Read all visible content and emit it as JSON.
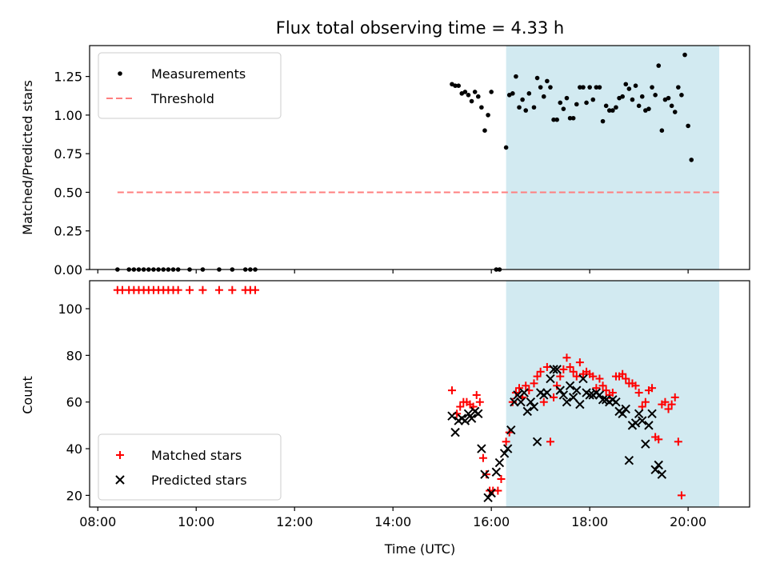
{
  "chart_data": [
    {
      "type": "scatter",
      "title": "Flux total observing time = 4.33 h",
      "xlabel": "",
      "ylabel": "Matched/Predicted stars",
      "xlim": [
        "07:50",
        "21:15"
      ],
      "ylim": [
        0,
        1.45
      ],
      "x_ticks": [
        "08:00",
        "10:00",
        "12:00",
        "14:00",
        "16:00",
        "18:00",
        "20:00"
      ],
      "y_ticks": [
        "0.00",
        "0.25",
        "0.50",
        "0.75",
        "1.00",
        "1.25"
      ],
      "legend": {
        "placement": "upper-left",
        "entries": [
          "Measurements",
          "Threshold"
        ]
      },
      "shaded_span": {
        "from": "16:18",
        "to": "20:38",
        "color": "#add8e6"
      },
      "threshold": {
        "name": "Threshold",
        "value": 0.5,
        "from": "08:24",
        "to": "20:38",
        "color": "#ff7f7f"
      },
      "series": [
        {
          "name": "Measurements",
          "color": "#000000",
          "points": [
            [
              "08:24",
              0
            ],
            [
              "08:38",
              0
            ],
            [
              "08:44",
              0
            ],
            [
              "08:50",
              0
            ],
            [
              "08:56",
              0
            ],
            [
              "09:02",
              0
            ],
            [
              "09:08",
              0
            ],
            [
              "09:14",
              0
            ],
            [
              "09:20",
              0
            ],
            [
              "09:26",
              0
            ],
            [
              "09:32",
              0
            ],
            [
              "09:38",
              0
            ],
            [
              "09:52",
              0
            ],
            [
              "10:08",
              0
            ],
            [
              "10:28",
              0
            ],
            [
              "10:44",
              0
            ],
            [
              "11:00",
              0
            ],
            [
              "11:06",
              0
            ],
            [
              "11:12",
              0
            ],
            [
              "15:12",
              1.2
            ],
            [
              "15:16",
              1.19
            ],
            [
              "15:20",
              1.19
            ],
            [
              "15:24",
              1.14
            ],
            [
              "15:28",
              1.15
            ],
            [
              "15:32",
              1.13
            ],
            [
              "15:36",
              1.09
            ],
            [
              "15:40",
              1.15
            ],
            [
              "15:44",
              1.12
            ],
            [
              "15:48",
              1.05
            ],
            [
              "15:52",
              0.9
            ],
            [
              "15:56",
              1.0
            ],
            [
              "16:00",
              1.15
            ],
            [
              "16:06",
              0
            ],
            [
              "16:10",
              0
            ],
            [
              "16:18",
              0.79
            ],
            [
              "16:22",
              1.13
            ],
            [
              "16:26",
              1.14
            ],
            [
              "16:30",
              1.25
            ],
            [
              "16:34",
              1.05
            ],
            [
              "16:38",
              1.1
            ],
            [
              "16:42",
              1.03
            ],
            [
              "16:46",
              1.14
            ],
            [
              "16:52",
              1.05
            ],
            [
              "16:56",
              1.24
            ],
            [
              "17:00",
              1.18
            ],
            [
              "17:04",
              1.12
            ],
            [
              "17:08",
              1.22
            ],
            [
              "17:12",
              1.18
            ],
            [
              "17:16",
              0.97
            ],
            [
              "17:20",
              0.97
            ],
            [
              "17:24",
              1.08
            ],
            [
              "17:28",
              1.04
            ],
            [
              "17:32",
              1.11
            ],
            [
              "17:36",
              0.98
            ],
            [
              "17:40",
              0.98
            ],
            [
              "17:44",
              1.07
            ],
            [
              "17:48",
              1.18
            ],
            [
              "17:52",
              1.18
            ],
            [
              "17:56",
              1.08
            ],
            [
              "18:00",
              1.18
            ],
            [
              "18:04",
              1.1
            ],
            [
              "18:08",
              1.18
            ],
            [
              "18:12",
              1.18
            ],
            [
              "18:16",
              0.96
            ],
            [
              "18:20",
              1.06
            ],
            [
              "18:24",
              1.03
            ],
            [
              "18:28",
              1.03
            ],
            [
              "18:32",
              1.05
            ],
            [
              "18:36",
              1.11
            ],
            [
              "18:40",
              1.12
            ],
            [
              "18:44",
              1.2
            ],
            [
              "18:48",
              1.17
            ],
            [
              "18:52",
              1.1
            ],
            [
              "18:56",
              1.19
            ],
            [
              "19:00",
              1.06
            ],
            [
              "19:04",
              1.12
            ],
            [
              "19:08",
              1.03
            ],
            [
              "19:12",
              1.04
            ],
            [
              "19:16",
              1.18
            ],
            [
              "19:20",
              1.13
            ],
            [
              "19:24",
              1.32
            ],
            [
              "19:28",
              0.9
            ],
            [
              "19:32",
              1.1
            ],
            [
              "19:36",
              1.11
            ],
            [
              "19:40",
              1.06
            ],
            [
              "19:44",
              1.02
            ],
            [
              "19:48",
              1.18
            ],
            [
              "19:52",
              1.13
            ],
            [
              "19:56",
              1.39
            ],
            [
              "20:00",
              0.93
            ],
            [
              "20:04",
              0.71
            ]
          ]
        }
      ]
    },
    {
      "type": "scatter",
      "title": "",
      "xlabel": "Time (UTC)",
      "ylabel": "Count",
      "xlim": [
        "07:50",
        "21:15"
      ],
      "ylim": [
        15,
        112
      ],
      "x_ticks": [
        "08:00",
        "10:00",
        "12:00",
        "14:00",
        "16:00",
        "18:00",
        "20:00"
      ],
      "y_ticks": [
        "20",
        "40",
        "60",
        "80",
        "100"
      ],
      "legend": {
        "placement": "lower-left",
        "entries": [
          "Matched stars",
          "Predicted stars"
        ]
      },
      "shaded_span": {
        "from": "16:18",
        "to": "20:38",
        "color": "#add8e6"
      },
      "series": [
        {
          "name": "Matched stars",
          "color": "#ff0000",
          "marker": "+",
          "points": [
            [
              "08:24",
              108
            ],
            [
              "08:30",
              108
            ],
            [
              "08:38",
              108
            ],
            [
              "08:44",
              108
            ],
            [
              "08:50",
              108
            ],
            [
              "08:56",
              108
            ],
            [
              "09:02",
              108
            ],
            [
              "09:08",
              108
            ],
            [
              "09:14",
              108
            ],
            [
              "09:20",
              108
            ],
            [
              "09:26",
              108
            ],
            [
              "09:32",
              108
            ],
            [
              "09:38",
              108
            ],
            [
              "09:52",
              108
            ],
            [
              "10:08",
              108
            ],
            [
              "10:28",
              108
            ],
            [
              "10:44",
              108
            ],
            [
              "11:00",
              108
            ],
            [
              "11:06",
              108
            ],
            [
              "11:12",
              108
            ],
            [
              "15:12",
              65
            ],
            [
              "15:18",
              55
            ],
            [
              "15:22",
              58
            ],
            [
              "15:26",
              60
            ],
            [
              "15:30",
              60
            ],
            [
              "15:34",
              59
            ],
            [
              "15:38",
              58
            ],
            [
              "15:42",
              63
            ],
            [
              "15:46",
              60
            ],
            [
              "15:50",
              36
            ],
            [
              "15:54",
              29
            ],
            [
              "15:58",
              22
            ],
            [
              "16:02",
              22
            ],
            [
              "16:08",
              22
            ],
            [
              "16:12",
              27
            ],
            [
              "16:18",
              43
            ],
            [
              "16:22",
              47
            ],
            [
              "16:26",
              60
            ],
            [
              "16:30",
              64
            ],
            [
              "16:34",
              66
            ],
            [
              "16:38",
              62
            ],
            [
              "16:42",
              67
            ],
            [
              "16:46",
              65
            ],
            [
              "16:52",
              68
            ],
            [
              "16:56",
              71
            ],
            [
              "17:00",
              73
            ],
            [
              "17:04",
              60
            ],
            [
              "17:08",
              75
            ],
            [
              "17:12",
              43
            ],
            [
              "17:16",
              62
            ],
            [
              "17:20",
              67
            ],
            [
              "17:24",
              71
            ],
            [
              "17:28",
              74
            ],
            [
              "17:32",
              79
            ],
            [
              "17:36",
              75
            ],
            [
              "17:40",
              73
            ],
            [
              "17:44",
              71
            ],
            [
              "17:48",
              77
            ],
            [
              "17:52",
              72
            ],
            [
              "17:56",
              73
            ],
            [
              "18:00",
              72
            ],
            [
              "18:04",
              71
            ],
            [
              "18:08",
              66
            ],
            [
              "18:12",
              70
            ],
            [
              "18:16",
              67
            ],
            [
              "18:20",
              65
            ],
            [
              "18:24",
              63
            ],
            [
              "18:28",
              64
            ],
            [
              "18:32",
              71
            ],
            [
              "18:36",
              71
            ],
            [
              "18:40",
              72
            ],
            [
              "18:44",
              70
            ],
            [
              "18:48",
              68
            ],
            [
              "18:52",
              68
            ],
            [
              "18:56",
              67
            ],
            [
              "19:00",
              64
            ],
            [
              "19:04",
              58
            ],
            [
              "19:08",
              60
            ],
            [
              "19:12",
              65
            ],
            [
              "19:16",
              66
            ],
            [
              "19:20",
              45
            ],
            [
              "19:24",
              44
            ],
            [
              "19:28",
              59
            ],
            [
              "19:32",
              60
            ],
            [
              "19:36",
              57
            ],
            [
              "19:40",
              59
            ],
            [
              "19:44",
              62
            ],
            [
              "19:48",
              43
            ],
            [
              "19:52",
              20
            ]
          ]
        },
        {
          "name": "Predicted stars",
          "color": "#000000",
          "marker": "x",
          "points": [
            [
              "15:12",
              54
            ],
            [
              "15:16",
              47
            ],
            [
              "15:20",
              52
            ],
            [
              "15:24",
              53
            ],
            [
              "15:28",
              52
            ],
            [
              "15:32",
              55
            ],
            [
              "15:36",
              53
            ],
            [
              "15:40",
              56
            ],
            [
              "15:44",
              55
            ],
            [
              "15:48",
              40
            ],
            [
              "15:52",
              29
            ],
            [
              "15:56",
              19
            ],
            [
              "16:00",
              21
            ],
            [
              "16:06",
              30
            ],
            [
              "16:10",
              34
            ],
            [
              "16:16",
              38
            ],
            [
              "16:20",
              40
            ],
            [
              "16:24",
              48
            ],
            [
              "16:28",
              60
            ],
            [
              "16:32",
              63
            ],
            [
              "16:36",
              60
            ],
            [
              "16:40",
              64
            ],
            [
              "16:44",
              56
            ],
            [
              "16:48",
              60
            ],
            [
              "16:52",
              58
            ],
            [
              "16:56",
              43
            ],
            [
              "17:00",
              64
            ],
            [
              "17:04",
              63
            ],
            [
              "17:08",
              64
            ],
            [
              "17:12",
              70
            ],
            [
              "17:16",
              74
            ],
            [
              "17:20",
              74
            ],
            [
              "17:24",
              65
            ],
            [
              "17:28",
              63
            ],
            [
              "17:32",
              60
            ],
            [
              "17:36",
              67
            ],
            [
              "17:40",
              62
            ],
            [
              "17:44",
              65
            ],
            [
              "17:48",
              59
            ],
            [
              "17:52",
              70
            ],
            [
              "17:56",
              64
            ],
            [
              "18:00",
              63
            ],
            [
              "18:04",
              63
            ],
            [
              "18:08",
              64
            ],
            [
              "18:12",
              63
            ],
            [
              "18:16",
              61
            ],
            [
              "18:20",
              61
            ],
            [
              "18:24",
              60
            ],
            [
              "18:28",
              61
            ],
            [
              "18:32",
              60
            ],
            [
              "18:36",
              56
            ],
            [
              "18:40",
              55
            ],
            [
              "18:44",
              57
            ],
            [
              "18:48",
              35
            ],
            [
              "18:52",
              50
            ],
            [
              "18:56",
              51
            ],
            [
              "19:00",
              55
            ],
            [
              "19:04",
              52
            ],
            [
              "19:08",
              42
            ],
            [
              "19:12",
              50
            ],
            [
              "19:16",
              55
            ],
            [
              "19:20",
              31
            ],
            [
              "19:24",
              33
            ],
            [
              "19:28",
              29
            ]
          ]
        }
      ]
    }
  ]
}
